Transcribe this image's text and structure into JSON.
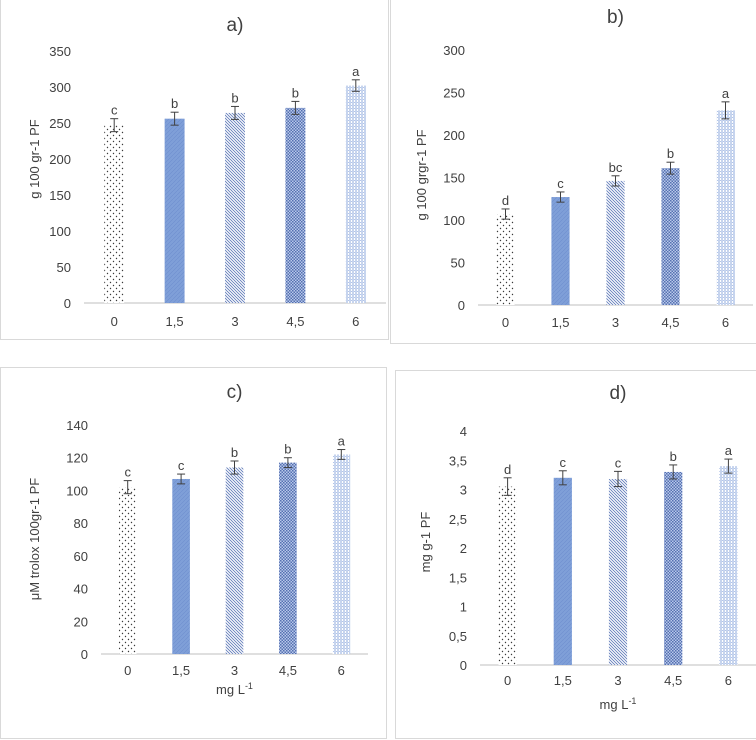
{
  "chart_data": [
    {
      "type": "bar",
      "title": "a)",
      "xlabel": "",
      "ylabel": "g 100 gr-1 PF",
      "categories": [
        "0",
        "1,5",
        "3",
        "4,5",
        "6"
      ],
      "values": [
        247,
        256,
        264,
        271,
        302
      ],
      "errors": [
        9,
        9,
        9,
        9,
        8
      ],
      "letters": [
        "c",
        "b",
        "b",
        "b",
        "a"
      ],
      "ylim": [
        0,
        350
      ],
      "yticks": [
        0,
        50,
        100,
        150,
        200,
        250,
        300,
        350
      ],
      "ytick_labels": [
        "0",
        "50",
        "100",
        "150",
        "200",
        "250",
        "300",
        "350"
      ],
      "grid": false,
      "legend": "none"
    },
    {
      "type": "bar",
      "title": "b)",
      "xlabel": "",
      "ylabel": "g 100 grgr-1 PF",
      "categories": [
        "0",
        "1,5",
        "3",
        "4,5",
        "6"
      ],
      "values": [
        107,
        127,
        146,
        161,
        229
      ],
      "errors": [
        6,
        6,
        6,
        7,
        10
      ],
      "letters": [
        "d",
        "c",
        "bc",
        "b",
        "a"
      ],
      "ylim": [
        0,
        300
      ],
      "yticks": [
        0,
        50,
        100,
        150,
        200,
        250,
        300
      ],
      "ytick_labels": [
        "0",
        "50",
        "100",
        "150",
        "200",
        "250",
        "300"
      ],
      "grid": false,
      "legend": "none"
    },
    {
      "type": "bar",
      "title": "c)",
      "xlabel": "mg L",
      "xlabel_sup": "-1",
      "ylabel": "μM trolox 100gr-1  PF",
      "categories": [
        "0",
        "1,5",
        "3",
        "4,5",
        "6"
      ],
      "values": [
        102,
        107,
        114,
        117,
        122
      ],
      "errors": [
        4,
        3,
        4,
        3,
        3
      ],
      "letters": [
        "c",
        "c",
        "b",
        "b",
        "a"
      ],
      "ylim": [
        0,
        140
      ],
      "yticks": [
        0,
        20,
        40,
        60,
        80,
        100,
        120,
        140
      ],
      "ytick_labels": [
        "0",
        "20",
        "40",
        "60",
        "80",
        "100",
        "120",
        "140"
      ],
      "grid": false,
      "legend": "none"
    },
    {
      "type": "bar",
      "title": "d)",
      "xlabel": "mg L",
      "xlabel_sup": "-1",
      "ylabel": "mg g-1 PF",
      "categories": [
        "0",
        "1,5",
        "3",
        "4,5",
        "6"
      ],
      "values": [
        3.05,
        3.2,
        3.18,
        3.3,
        3.4
      ],
      "errors": [
        0.15,
        0.12,
        0.13,
        0.12,
        0.12
      ],
      "letters": [
        "d",
        "c",
        "c",
        "b",
        "a"
      ],
      "ylim": [
        0,
        4
      ],
      "yticks": [
        0,
        0.5,
        1,
        1.5,
        2,
        2.5,
        3,
        3.5,
        4
      ],
      "ytick_labels": [
        "0",
        "0,5",
        "1",
        "1,5",
        "2",
        "2,5",
        "3",
        "3,5",
        "4"
      ],
      "grid": false,
      "legend": "none"
    }
  ],
  "colors": {
    "bar_blue": "#7f9fd8",
    "bar_dark": "#5570b0",
    "dots": "#3a3a3a",
    "axis": "#bfbfbf",
    "text": "#404040"
  }
}
